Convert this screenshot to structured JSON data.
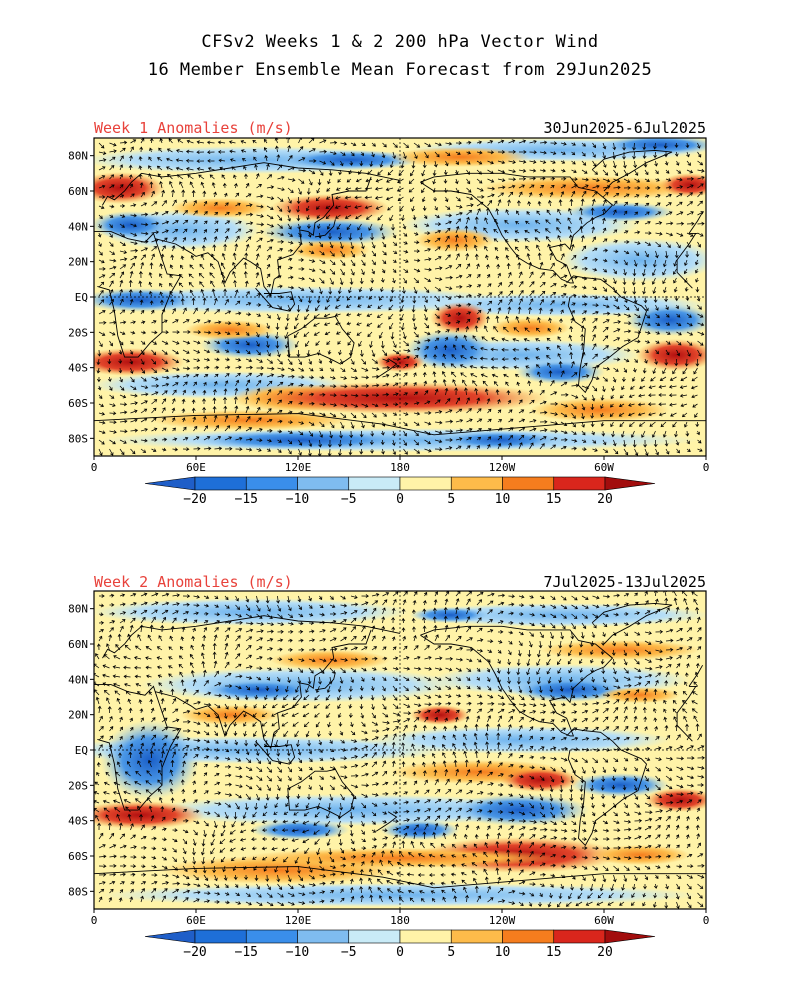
{
  "figure": {
    "title_line1": "CFSv2 Weeks 1 & 2 200 hPa Vector Wind",
    "title_line2": "16 Member Ensemble Mean Forecast from 29Jun2025"
  },
  "panels": [
    {
      "label": "Week 1 Anomalies (m/s)",
      "dates": "30Jun2025-6Jul2025"
    },
    {
      "label": "Week 2 Anomalies (m/s)",
      "dates": "7Jul2025-13Jul2025"
    }
  ],
  "axes": {
    "lat_labels": [
      "80N",
      "60N",
      "40N",
      "20N",
      "EQ",
      "20S",
      "40S",
      "60S",
      "80S"
    ],
    "lat_values": [
      80,
      60,
      40,
      20,
      0,
      -20,
      -40,
      -60,
      -80
    ],
    "lon_labels": [
      "0",
      "60E",
      "120E",
      "180",
      "120W",
      "60W",
      "0"
    ],
    "lon_values": [
      0,
      60,
      120,
      180,
      240,
      300,
      360
    ],
    "lat_range": [
      -90,
      90
    ],
    "lon_range": [
      0,
      360
    ]
  },
  "colorbar": {
    "levels": [
      "-20",
      "-15",
      "-10",
      "-5",
      "0",
      "5",
      "10",
      "15",
      "20"
    ],
    "colors": [
      "#1e6fd8",
      "#3a8eea",
      "#7fbcf0",
      "#c9ebf7",
      "#ffffff",
      "#fff3a8",
      "#fdbb4a",
      "#f57d1e",
      "#d9261c",
      "#9c0a0a"
    ],
    "neg_cap_color": "#1f5ec8",
    "pos_cap_color": "#a20d0d"
  },
  "colors": {
    "label_red": "#e8423b",
    "vector": "#000000",
    "coast": "#000000"
  }
}
